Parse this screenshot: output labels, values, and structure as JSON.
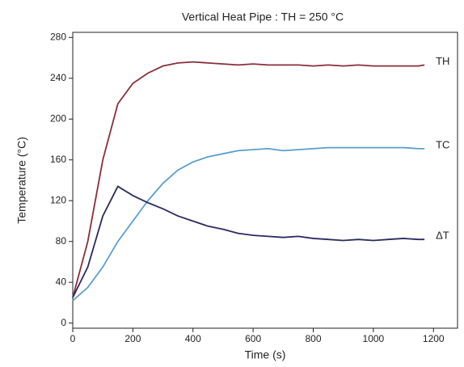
{
  "chart_data": {
    "type": "line",
    "title": "Vertical Heat Pipe : TH = 250 °C",
    "x_label": "Time (s)",
    "y_label": "Temperature (°C)",
    "x": [
      0,
      50,
      100,
      150,
      200,
      250,
      300,
      350,
      400,
      450,
      500,
      550,
      600,
      650,
      700,
      750,
      800,
      850,
      900,
      950,
      1000,
      1050,
      1100,
      1150,
      1170
    ],
    "series": [
      {
        "name": "TH",
        "color": "#8b2e3a",
        "values": [
          25,
          80,
          160,
          215,
          235,
          245,
          252,
          255,
          256,
          255,
          254,
          253,
          254,
          253,
          253,
          253,
          252,
          253,
          252,
          253,
          252,
          252,
          252,
          252,
          253
        ]
      },
      {
        "name": "TC",
        "color": "#5a9fcf",
        "values": [
          22,
          35,
          55,
          80,
          100,
          120,
          137,
          150,
          158,
          163,
          166,
          169,
          170,
          171,
          169,
          170,
          171,
          172,
          172,
          172,
          172,
          172,
          172,
          171,
          171
        ]
      },
      {
        "name": "ΔT",
        "color": "#2a2a62",
        "values": [
          25,
          55,
          105,
          134,
          125,
          118,
          112,
          105,
          100,
          95,
          92,
          88,
          86,
          85,
          84,
          85,
          83,
          82,
          81,
          82,
          81,
          82,
          83,
          82,
          82
        ]
      }
    ],
    "xlim": [
      0,
      1280
    ],
    "ylim": [
      -5,
      285
    ],
    "xticks": [
      0,
      200,
      400,
      600,
      800,
      1000,
      1200
    ],
    "yticks": [
      0,
      40,
      80,
      120,
      160,
      200,
      240,
      280
    ],
    "grid": false
  }
}
